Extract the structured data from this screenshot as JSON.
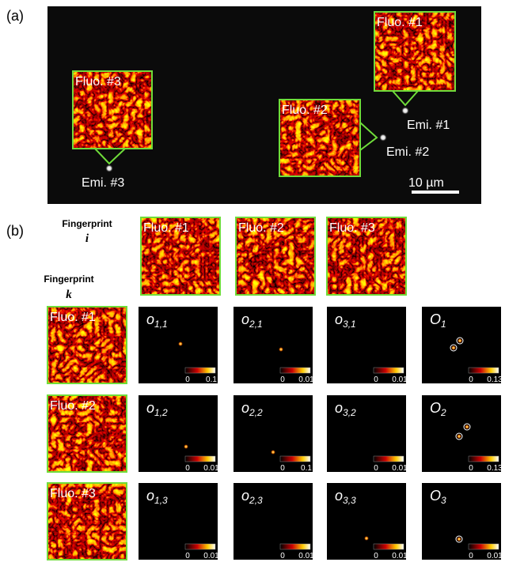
{
  "panel_a": {
    "label": "(a)",
    "insets": [
      "Fluo. #1",
      "Fluo. #2",
      "Fluo. #3"
    ],
    "emitters": [
      "Emi. #1",
      "Emi. #2",
      "Emi. #3"
    ],
    "scale_bar": "10 µm"
  },
  "panel_b": {
    "label": "(b)",
    "column_header": {
      "title": "Fingerprint",
      "symbol": "i"
    },
    "row_header": {
      "title": "Fingerprint",
      "symbol": "k"
    },
    "columns": [
      "Fluo. #1",
      "Fluo. #2",
      "Fluo. #3"
    ],
    "rows": [
      {
        "label": "Fluo. #1",
        "cells": [
          {
            "symbol": "o",
            "subscript": "1,1",
            "cbar_min": 0,
            "cbar_max": 0.1
          },
          {
            "symbol": "o",
            "subscript": "2,1",
            "cbar_min": 0,
            "cbar_max": 0.01
          },
          {
            "symbol": "o",
            "subscript": "3,1",
            "cbar_min": 0,
            "cbar_max": 0.01
          },
          {
            "symbol": "O",
            "subscript": "1",
            "cbar_min": 0,
            "cbar_max": 0.13
          }
        ]
      },
      {
        "label": "Fluo. #2",
        "cells": [
          {
            "symbol": "o",
            "subscript": "1,2",
            "cbar_min": 0,
            "cbar_max": 0.01
          },
          {
            "symbol": "o",
            "subscript": "2,2",
            "cbar_min": 0,
            "cbar_max": 0.1
          },
          {
            "symbol": "o",
            "subscript": "3,2",
            "cbar_min": 0,
            "cbar_max": 0.01
          },
          {
            "symbol": "O",
            "subscript": "2",
            "cbar_min": 0,
            "cbar_max": 0.13
          }
        ]
      },
      {
        "label": "Fluo. #3",
        "cells": [
          {
            "symbol": "o",
            "subscript": "1,3",
            "cbar_min": 0,
            "cbar_max": 0.01
          },
          {
            "symbol": "o",
            "subscript": "2,3",
            "cbar_min": 0,
            "cbar_max": 0.01
          },
          {
            "symbol": "o",
            "subscript": "3,3",
            "cbar_min": 0,
            "cbar_max": 0.01
          },
          {
            "symbol": "O",
            "subscript": "3",
            "cbar_min": 0,
            "cbar_max": 0.01
          }
        ]
      }
    ]
  }
}
